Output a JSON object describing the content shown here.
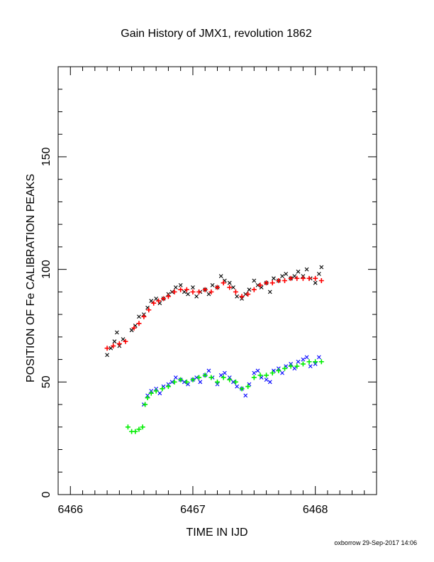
{
  "chart_data": {
    "type": "scatter",
    "title": "Gain History of JMX1, revolution 1862",
    "xlabel": "TIME IN IJD",
    "ylabel": "POSITION OF Fe CALIBRATION PEAKS",
    "xlim": [
      6465.9,
      6468.5
    ],
    "ylim": [
      0,
      190
    ],
    "xticks": [
      6466,
      6467,
      6468
    ],
    "xtick_labels": [
      "6466",
      "6467",
      "6468"
    ],
    "yticks": [
      0,
      50,
      100,
      150
    ],
    "ytick_labels": [
      "0",
      "50",
      "100",
      "150"
    ],
    "grid": false,
    "footer": "oxborrow 29-Sep-2017 14:06",
    "colors": {
      "upper_raw": "#000000",
      "upper_smooth": "#ff0000",
      "lower_raw": "#0000ff",
      "lower_smooth": "#00ee00"
    },
    "series": [
      {
        "marker": "x",
        "color": "#000000",
        "points": [
          [
            6466.3,
            62
          ],
          [
            6466.33,
            65
          ],
          [
            6466.36,
            68
          ],
          [
            6466.38,
            72
          ],
          [
            6466.4,
            66
          ],
          [
            6466.43,
            69
          ],
          [
            6466.5,
            73
          ],
          [
            6466.53,
            75
          ],
          [
            6466.56,
            79
          ],
          [
            6466.6,
            80
          ],
          [
            6466.63,
            83
          ],
          [
            6466.66,
            86
          ],
          [
            6466.7,
            87
          ],
          [
            6466.73,
            85
          ],
          [
            6466.76,
            87
          ],
          [
            6466.8,
            89
          ],
          [
            6466.83,
            90
          ],
          [
            6466.86,
            92
          ],
          [
            6466.9,
            93
          ],
          [
            6466.93,
            90
          ],
          [
            6466.96,
            89
          ],
          [
            6467.0,
            92
          ],
          [
            6467.03,
            88
          ],
          [
            6467.06,
            90
          ],
          [
            6467.1,
            91
          ],
          [
            6467.13,
            89
          ],
          [
            6467.16,
            93
          ],
          [
            6467.2,
            92
          ],
          [
            6467.23,
            97
          ],
          [
            6467.26,
            95
          ],
          [
            6467.3,
            94
          ],
          [
            6467.33,
            92
          ],
          [
            6467.36,
            88
          ],
          [
            6467.4,
            87
          ],
          [
            6467.43,
            89
          ],
          [
            6467.46,
            91
          ],
          [
            6467.5,
            95
          ],
          [
            6467.53,
            93
          ],
          [
            6467.56,
            92
          ],
          [
            6467.6,
            94
          ],
          [
            6467.63,
            90
          ],
          [
            6467.66,
            96
          ],
          [
            6467.7,
            95
          ],
          [
            6467.73,
            97
          ],
          [
            6467.76,
            98
          ],
          [
            6467.8,
            96
          ],
          [
            6467.83,
            97
          ],
          [
            6467.86,
            99
          ],
          [
            6467.9,
            97
          ],
          [
            6467.93,
            100
          ],
          [
            6467.96,
            96
          ],
          [
            6468.0,
            94
          ],
          [
            6468.03,
            98
          ],
          [
            6468.05,
            101
          ]
        ]
      },
      {
        "marker": "+",
        "color": "#ff0000",
        "points": [
          [
            6466.3,
            65
          ],
          [
            6466.35,
            66
          ],
          [
            6466.4,
            67
          ],
          [
            6466.45,
            68
          ],
          [
            6466.52,
            74
          ],
          [
            6466.56,
            76
          ],
          [
            6466.6,
            79
          ],
          [
            6466.64,
            82
          ],
          [
            6466.68,
            85
          ],
          [
            6466.72,
            86
          ],
          [
            6466.76,
            87
          ],
          [
            6466.8,
            88
          ],
          [
            6466.85,
            90
          ],
          [
            6466.9,
            91
          ],
          [
            6466.95,
            91
          ],
          [
            6467.0,
            90
          ],
          [
            6467.05,
            90
          ],
          [
            6467.1,
            91
          ],
          [
            6467.15,
            90
          ],
          [
            6467.2,
            92
          ],
          [
            6467.25,
            94
          ],
          [
            6467.3,
            92
          ],
          [
            6467.35,
            90
          ],
          [
            6467.4,
            88
          ],
          [
            6467.45,
            89
          ],
          [
            6467.5,
            91
          ],
          [
            6467.55,
            93
          ],
          [
            6467.6,
            94
          ],
          [
            6467.65,
            94
          ],
          [
            6467.7,
            95
          ],
          [
            6467.75,
            95
          ],
          [
            6467.8,
            96
          ],
          [
            6467.85,
            96
          ],
          [
            6467.9,
            96
          ],
          [
            6467.95,
            96
          ],
          [
            6468.0,
            96
          ],
          [
            6468.05,
            95
          ]
        ]
      },
      {
        "marker": "x",
        "color": "#0000ff",
        "points": [
          [
            6466.6,
            40
          ],
          [
            6466.63,
            44
          ],
          [
            6466.66,
            46
          ],
          [
            6466.7,
            47
          ],
          [
            6466.73,
            45
          ],
          [
            6466.76,
            48
          ],
          [
            6466.8,
            49
          ],
          [
            6466.83,
            50
          ],
          [
            6466.86,
            52
          ],
          [
            6466.9,
            51
          ],
          [
            6466.93,
            50
          ],
          [
            6466.96,
            49
          ],
          [
            6467.0,
            51
          ],
          [
            6467.03,
            52
          ],
          [
            6467.06,
            50
          ],
          [
            6467.1,
            53
          ],
          [
            6467.13,
            55
          ],
          [
            6467.16,
            52
          ],
          [
            6467.2,
            49
          ],
          [
            6467.23,
            53
          ],
          [
            6467.26,
            54
          ],
          [
            6467.3,
            52
          ],
          [
            6467.33,
            50
          ],
          [
            6467.36,
            48
          ],
          [
            6467.4,
            47
          ],
          [
            6467.43,
            44
          ],
          [
            6467.46,
            49
          ],
          [
            6467.5,
            54
          ],
          [
            6467.53,
            55
          ],
          [
            6467.56,
            52
          ],
          [
            6467.6,
            51
          ],
          [
            6467.63,
            50
          ],
          [
            6467.66,
            55
          ],
          [
            6467.7,
            56
          ],
          [
            6467.73,
            54
          ],
          [
            6467.76,
            57
          ],
          [
            6467.8,
            58
          ],
          [
            6467.83,
            56
          ],
          [
            6467.86,
            59
          ],
          [
            6467.9,
            60
          ],
          [
            6467.93,
            61
          ],
          [
            6467.96,
            57
          ],
          [
            6468.0,
            58
          ],
          [
            6468.03,
            61
          ]
        ]
      },
      {
        "marker": "+",
        "color": "#00ee00",
        "points": [
          [
            6466.47,
            30
          ],
          [
            6466.5,
            28
          ],
          [
            6466.53,
            28
          ],
          [
            6466.56,
            29
          ],
          [
            6466.59,
            30
          ],
          [
            6466.61,
            40
          ],
          [
            6466.63,
            43
          ],
          [
            6466.66,
            45
          ],
          [
            6466.7,
            46
          ],
          [
            6466.75,
            47
          ],
          [
            6466.8,
            48
          ],
          [
            6466.85,
            50
          ],
          [
            6466.9,
            51
          ],
          [
            6466.95,
            50
          ],
          [
            6467.0,
            51
          ],
          [
            6467.05,
            52
          ],
          [
            6467.1,
            53
          ],
          [
            6467.15,
            52
          ],
          [
            6467.2,
            50
          ],
          [
            6467.25,
            52
          ],
          [
            6467.3,
            51
          ],
          [
            6467.35,
            50
          ],
          [
            6467.4,
            47
          ],
          [
            6467.45,
            48
          ],
          [
            6467.5,
            52
          ],
          [
            6467.55,
            53
          ],
          [
            6467.6,
            53
          ],
          [
            6467.65,
            54
          ],
          [
            6467.7,
            55
          ],
          [
            6467.75,
            56
          ],
          [
            6467.8,
            57
          ],
          [
            6467.85,
            57
          ],
          [
            6467.9,
            58
          ],
          [
            6467.95,
            59
          ],
          [
            6468.0,
            59
          ],
          [
            6468.05,
            59
          ]
        ]
      }
    ]
  }
}
